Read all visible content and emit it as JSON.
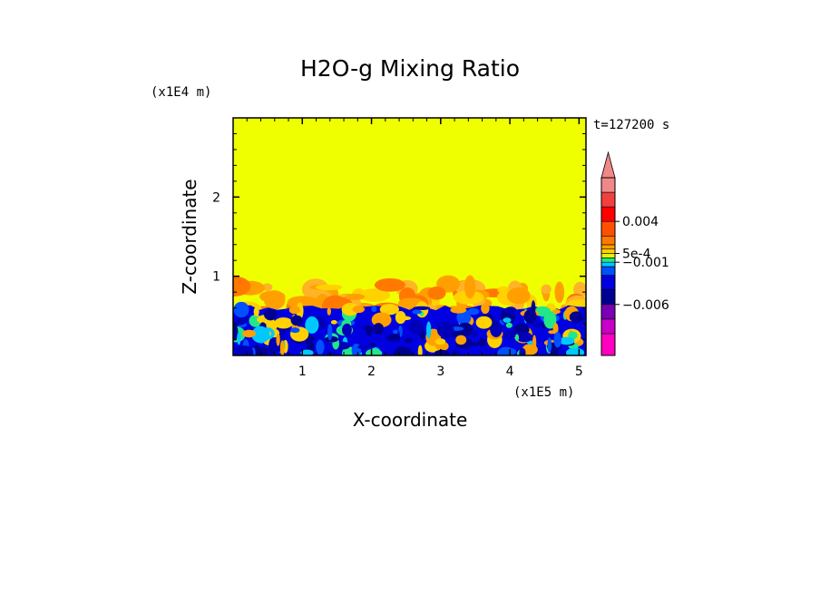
{
  "chart_data": {
    "type": "heatmap",
    "title": "H2O-g Mixing Ratio",
    "xlabel": "X-coordinate",
    "ylabel": "Z-coordinate",
    "x_unit": "(x1E5 m)",
    "y_unit": "(x1E4 m)",
    "time_label": "t=127200 s",
    "xlim": [
      0,
      5.1
    ],
    "ylim": [
      0,
      3.0
    ],
    "x_ticks": [
      1,
      2,
      3,
      4,
      5
    ],
    "y_ticks": [
      1,
      2
    ],
    "colorbar": {
      "colors": [
        "#ff00c0",
        "#c800c8",
        "#7a00b4",
        "#000090",
        "#0000e0",
        "#0050ff",
        "#00c8ff",
        "#20e888",
        "#e8f000",
        "#ffd200",
        "#ffa000",
        "#ff7800",
        "#ff5000",
        "#ff0000",
        "#f04040",
        "#f08888"
      ],
      "labels": [
        {
          "text": "0.004",
          "level": 0.004
        },
        {
          "text": "5e-4",
          "level": 0.0005
        },
        {
          "text": "−0.001",
          "level": -0.001
        },
        {
          "text": "−0.006",
          "level": -0.006
        }
      ],
      "extend": "max"
    },
    "field": {
      "background": "#f0ff00",
      "upper_layer_top": 1.0,
      "moist_layer_top": 0.6,
      "description_levels": [
        "yellow above ~1.0",
        "orange plumes 0.5-1.0",
        "blue/cyan below ~0.6"
      ]
    }
  }
}
